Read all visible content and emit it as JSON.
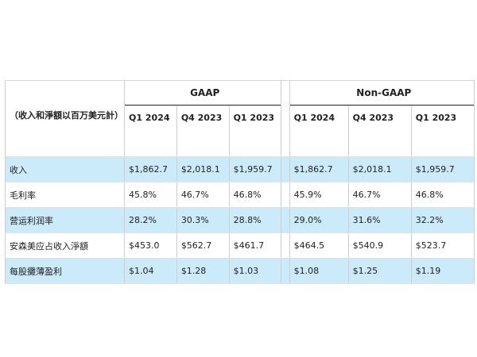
{
  "table": {
    "groups": {
      "gaap": "GAAP",
      "non_gaap": "Non-GAAP"
    },
    "header_label": "（收入和淨額以百万美元計）",
    "columns": [
      "Q1 2024",
      "Q4 2023",
      "Q1 2023",
      "Q1 2024",
      "Q4 2023",
      "Q1 2023"
    ],
    "rows": [
      {
        "label": "收入",
        "values": [
          "$1,862.7",
          "$2,018.1",
          "$1,959.7",
          "$1,862.7",
          "$2,018.1",
          "$1,959.7"
        ]
      },
      {
        "label": "毛利率",
        "values": [
          "45.8%",
          "46.7%",
          "46.8%",
          "45.9%",
          "46.7%",
          "46.8%"
        ]
      },
      {
        "label": "营运利润率",
        "values": [
          "28.2%",
          "30.3%",
          "28.8%",
          "29.0%",
          "31.6%",
          "32.2%"
        ]
      },
      {
        "label": "安森美应占收入淨額",
        "values": [
          "$453.0",
          "$562.7",
          "$461.7",
          "$464.5",
          "$540.9",
          "$523.7"
        ]
      },
      {
        "label": "每股攤薄盈利",
        "values": [
          "$1.04",
          "$1.28",
          "$1.03",
          "$1.08",
          "$1.25",
          "$1.19"
        ]
      }
    ],
    "shading": {
      "shaded_row_color": "#cbeafa",
      "line_color": "#222222"
    }
  }
}
